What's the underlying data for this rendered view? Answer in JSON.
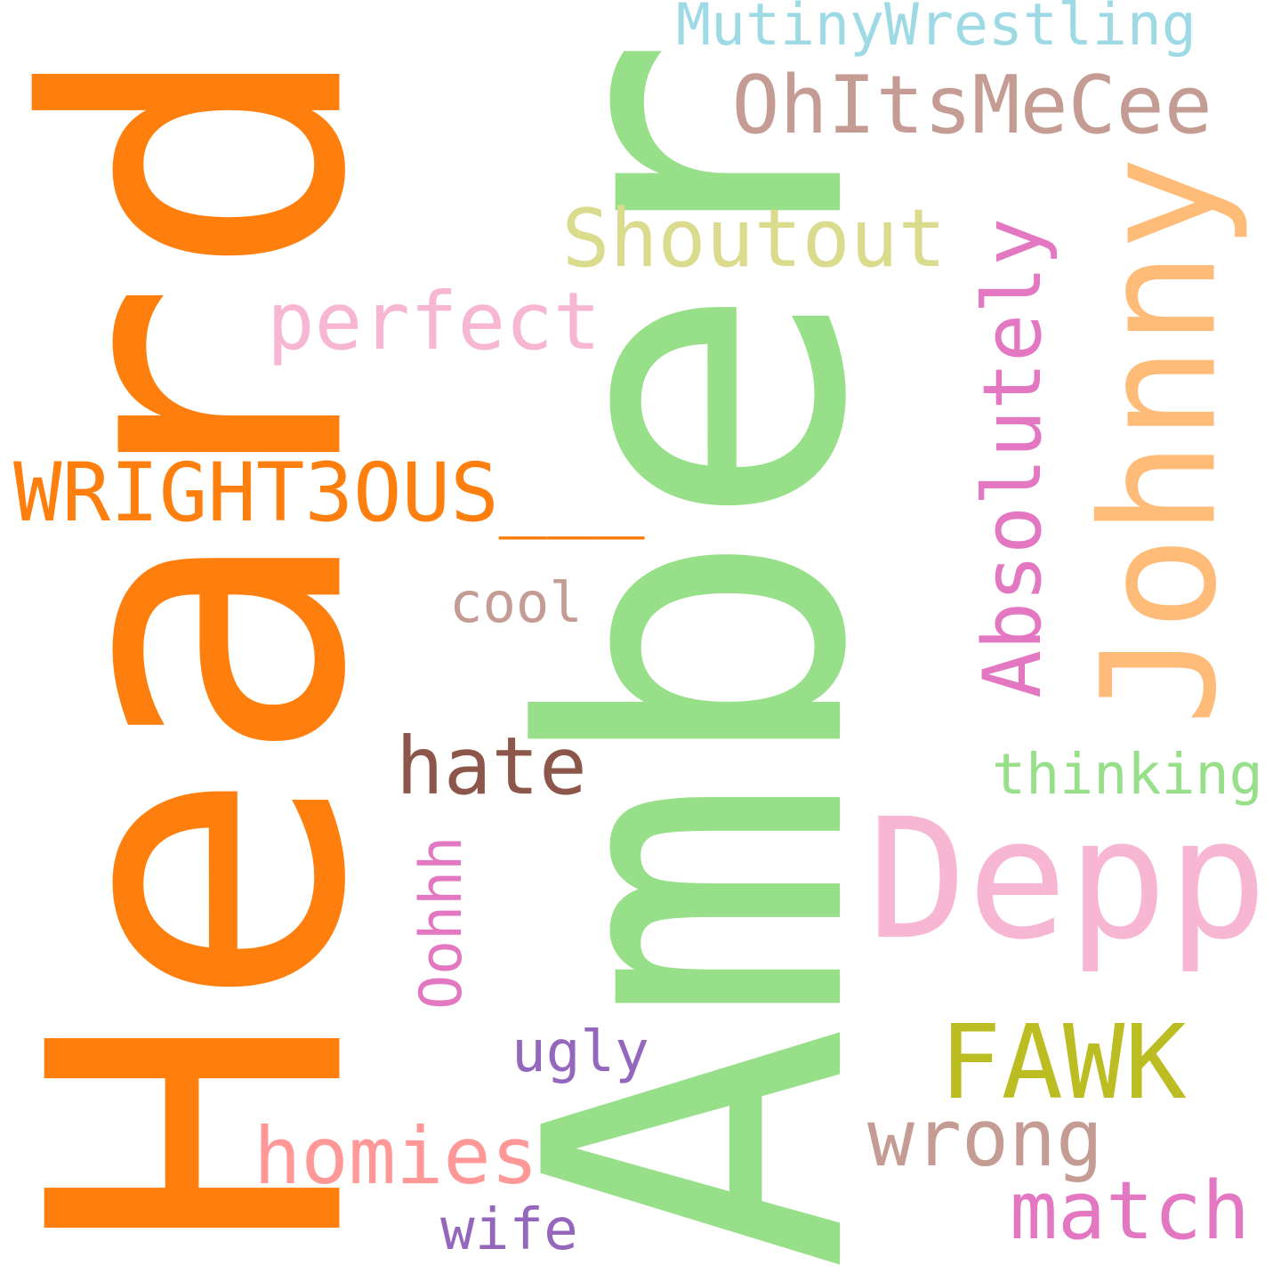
{
  "words": [
    {
      "text": "Heard",
      "color": "#ff7f0e",
      "rotated": true
    },
    {
      "text": "Amber",
      "color": "#98df8a",
      "rotated": true
    },
    {
      "text": "Johnny",
      "color": "#ffbb78",
      "rotated": true
    },
    {
      "text": "Depp",
      "color": "#f7b6d2",
      "rotated": false
    },
    {
      "text": "WRIGHT3OUS___",
      "color": "#ff7f0e",
      "rotated": false
    },
    {
      "text": "OhItsMeCee",
      "color": "#c49c94",
      "rotated": false
    },
    {
      "text": "Absolutely",
      "color": "#e377c2",
      "rotated": true
    },
    {
      "text": "Shoutout",
      "color": "#dbdb8d",
      "rotated": false
    },
    {
      "text": "perfect",
      "color": "#f7b6d2",
      "rotated": false
    },
    {
      "text": "MutinyWrestling",
      "color": "#9edae5",
      "rotated": false
    },
    {
      "text": "hate",
      "color": "#8c564b",
      "rotated": false
    },
    {
      "text": "FAWK",
      "color": "#bcbd22",
      "rotated": false
    },
    {
      "text": "wrong",
      "color": "#c49c94",
      "rotated": false
    },
    {
      "text": "homies",
      "color": "#ff9896",
      "rotated": false
    },
    {
      "text": "match",
      "color": "#e377c2",
      "rotated": false
    },
    {
      "text": "thinking",
      "color": "#98df8a",
      "rotated": false
    },
    {
      "text": "cool",
      "color": "#c49c94",
      "rotated": false
    },
    {
      "text": "Oohhh",
      "color": "#e377c2",
      "rotated": true
    },
    {
      "text": "ugly",
      "color": "#9467bd",
      "rotated": false
    },
    {
      "text": "wife",
      "color": "#9467bd",
      "rotated": false
    }
  ]
}
